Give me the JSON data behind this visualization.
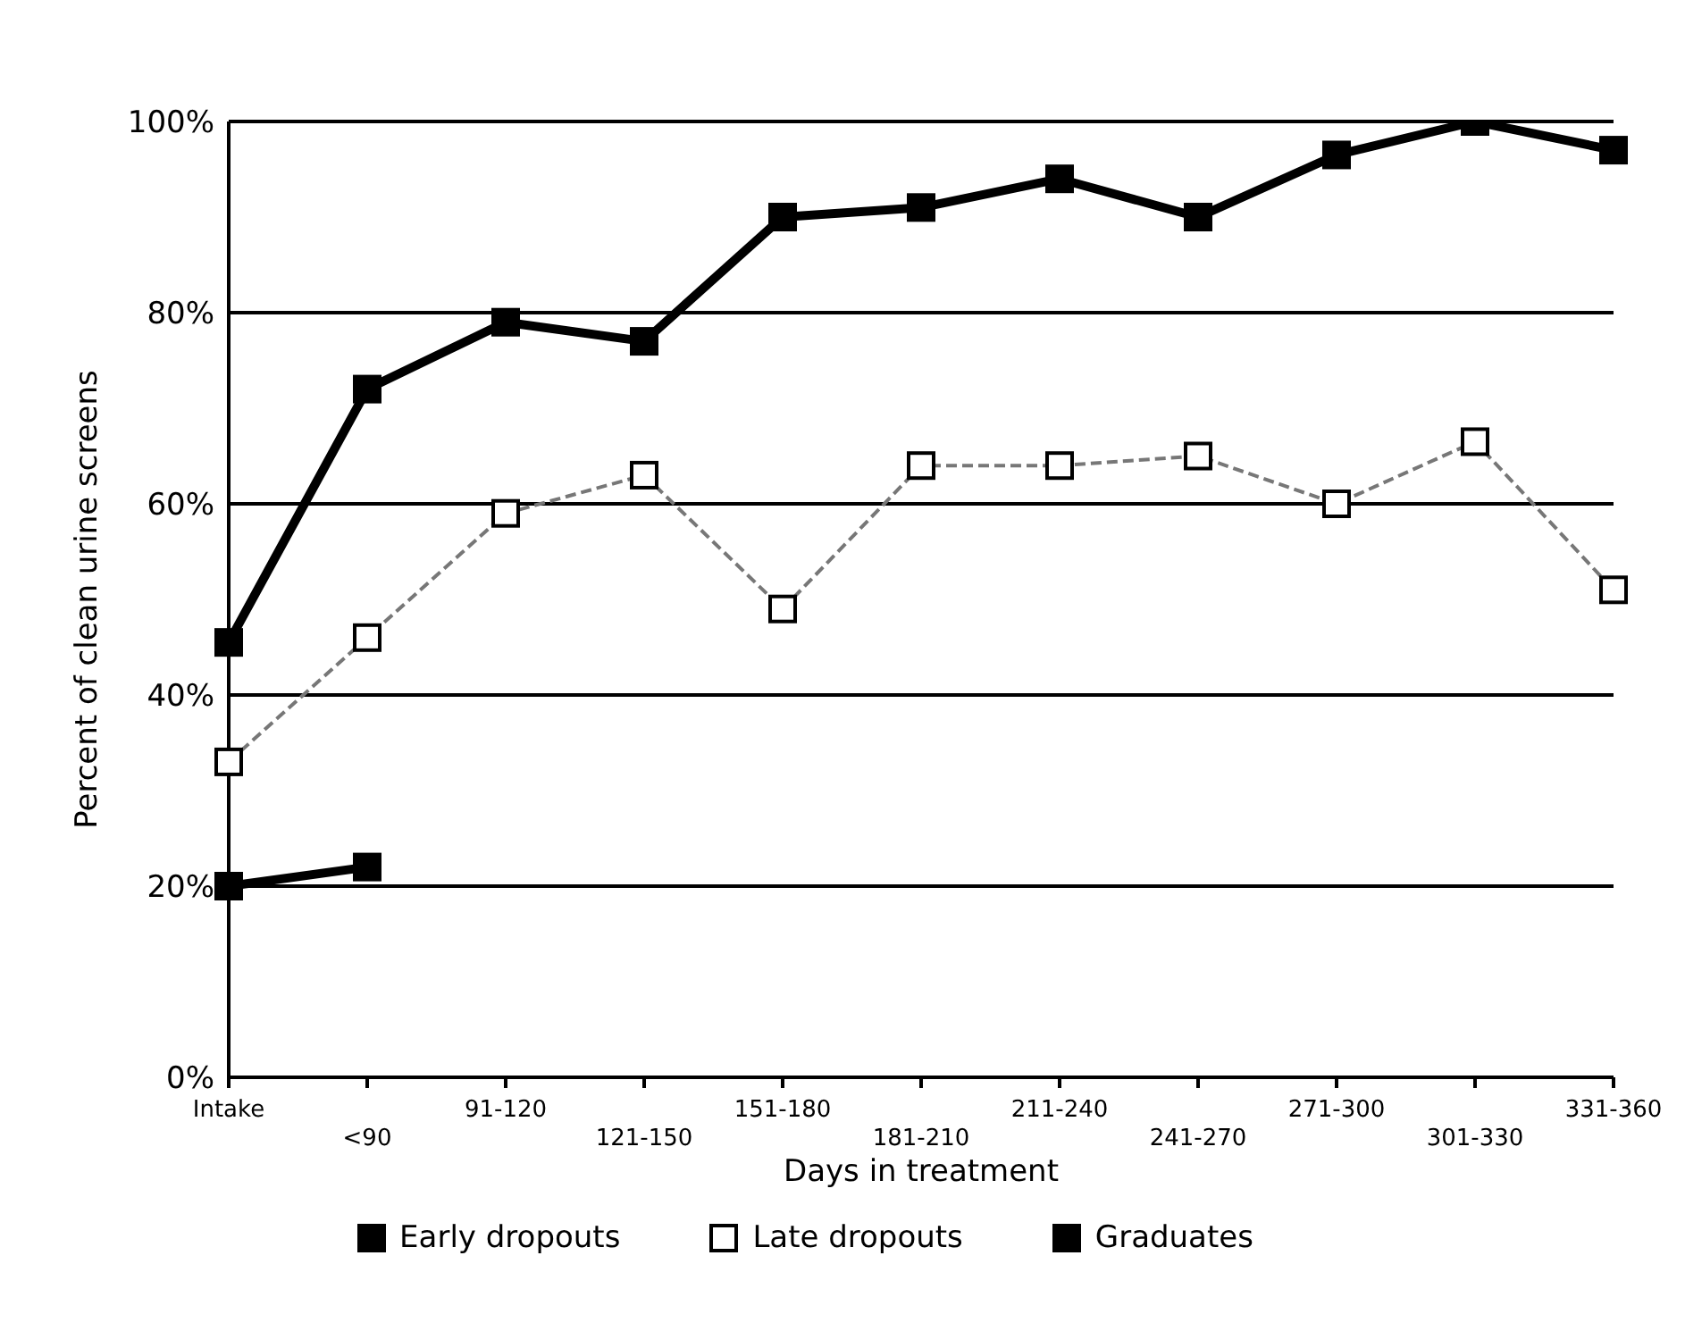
{
  "chart_data": {
    "type": "line",
    "xlabel": "Days in treatment",
    "ylabel": "Percent of clean urine screens",
    "categories": [
      "Intake",
      "<90",
      "91-120",
      "121-150",
      "151-180",
      "181-210",
      "211-240",
      "241-270",
      "271-300",
      "301-330",
      "331-360"
    ],
    "series": [
      {
        "name": "Early dropouts",
        "color": "#000000",
        "values": [
          20,
          22,
          null,
          null,
          null,
          null,
          null,
          null,
          null,
          null,
          null
        ]
      },
      {
        "name": "Late dropouts",
        "color": "#777777",
        "line_style": "dashed",
        "values": [
          33,
          46,
          59,
          63,
          49,
          64,
          64,
          65,
          60,
          66.5,
          51
        ]
      },
      {
        "name": "Graduates",
        "color": "#000000",
        "values": [
          45.5,
          72,
          79,
          77,
          90,
          91,
          94,
          90,
          96.5,
          100,
          97
        ]
      }
    ],
    "ylim": [
      0,
      100
    ],
    "yticks": [
      {
        "value": 0,
        "label": "0%"
      },
      {
        "value": 20,
        "label": "20%"
      },
      {
        "value": 40,
        "label": "40%"
      },
      {
        "value": 60,
        "label": "60%"
      },
      {
        "value": 80,
        "label": "80%"
      },
      {
        "value": 100,
        "label": "100%"
      }
    ],
    "grid": "y",
    "legend": "bottom",
    "marker": "square",
    "line_style": "solid"
  }
}
